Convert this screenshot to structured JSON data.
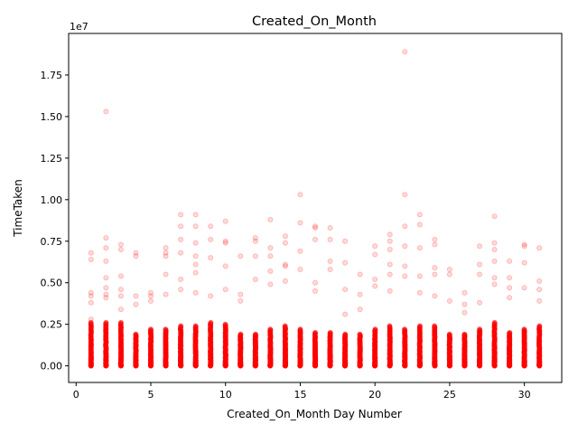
{
  "chart_data": {
    "type": "scatter",
    "title": "Created_On_Month",
    "xlabel": "Created_On_Month Day Number",
    "ylabel": "TimeTaken",
    "y_multiplier_label": "1e7",
    "xlim": [
      -0.5,
      32.5
    ],
    "ylim": [
      -1000000,
      20000000
    ],
    "x_ticks": [
      0,
      5,
      10,
      15,
      20,
      25,
      30
    ],
    "x_tick_labels": [
      "0",
      "5",
      "10",
      "15",
      "20",
      "25",
      "30"
    ],
    "y_ticks": [
      0,
      2500000,
      5000000,
      7500000,
      10000000,
      12500000,
      15000000,
      17500000
    ],
    "y_tick_labels": [
      "0.00",
      "0.25",
      "0.50",
      "0.75",
      "1.00",
      "1.25",
      "1.50",
      "1.75"
    ],
    "grid": false,
    "marker_color": "#ff0000",
    "marker_alpha": 0.15,
    "series": [
      {
        "x": [
          1,
          1,
          1,
          1,
          1,
          1,
          2,
          2,
          2,
          2,
          2,
          2,
          2,
          2,
          3,
          3,
          3,
          3,
          3,
          3,
          4,
          4,
          4,
          4,
          5,
          5,
          5,
          6,
          6,
          6,
          6,
          6,
          7,
          7,
          7,
          7,
          7,
          7,
          8,
          8,
          8,
          8,
          8,
          8,
          8,
          9,
          9,
          9,
          9,
          10,
          10,
          10,
          10,
          10,
          11,
          11,
          11,
          12,
          12,
          12,
          12,
          13,
          13,
          13,
          13,
          13,
          14,
          14,
          14,
          14,
          14,
          15,
          15,
          15,
          15,
          16,
          16,
          16,
          16,
          16,
          17,
          17,
          17,
          17,
          18,
          18,
          18,
          18,
          19,
          19,
          19,
          20,
          20,
          20,
          20,
          21,
          21,
          21,
          21,
          21,
          21,
          22,
          22,
          22,
          22,
          22,
          22,
          23,
          23,
          23,
          23,
          23,
          24,
          24,
          24,
          24,
          24,
          25,
          25,
          25,
          26,
          26,
          26,
          27,
          27,
          27,
          27,
          28,
          28,
          28,
          28,
          28,
          28,
          29,
          29,
          29,
          29,
          30,
          30,
          30,
          30,
          31,
          31,
          31,
          31
        ],
        "y": [
          6800000,
          6400000,
          4400000,
          4200000,
          3800000,
          2800000,
          15300000,
          7700000,
          7100000,
          6300000,
          5300000,
          4700000,
          4300000,
          4100000,
          7300000,
          7000000,
          5400000,
          4600000,
          4200000,
          3400000,
          6800000,
          6600000,
          4200000,
          3700000,
          4400000,
          4200000,
          3900000,
          7100000,
          6800000,
          6600000,
          5500000,
          4300000,
          9100000,
          8400000,
          7600000,
          6800000,
          5200000,
          4600000,
          9100000,
          8400000,
          7400000,
          6600000,
          6100000,
          5600000,
          4400000,
          8400000,
          7600000,
          6500000,
          4200000,
          8700000,
          7500000,
          7400000,
          6000000,
          4600000,
          6600000,
          4300000,
          3900000,
          7700000,
          7500000,
          6600000,
          5200000,
          8800000,
          7100000,
          6600000,
          5700000,
          4900000,
          7800000,
          7400000,
          6100000,
          6000000,
          5100000,
          10300000,
          8600000,
          6900000,
          5800000,
          8400000,
          8300000,
          7600000,
          5000000,
          4500000,
          8300000,
          7600000,
          6300000,
          5800000,
          7500000,
          6200000,
          4600000,
          3100000,
          5500000,
          4300000,
          3400000,
          7200000,
          6700000,
          5200000,
          4800000,
          7900000,
          7500000,
          7000000,
          6100000,
          5500000,
          4500000,
          18900000,
          10300000,
          8400000,
          7200000,
          6000000,
          5400000,
          9100000,
          8500000,
          7100000,
          5400000,
          4400000,
          7600000,
          7300000,
          5900000,
          5500000,
          4200000,
          5800000,
          5500000,
          3900000,
          4400000,
          3700000,
          3200000,
          7200000,
          6100000,
          5500000,
          3800000,
          9000000,
          7400000,
          7000000,
          6300000,
          5300000,
          4900000,
          6300000,
          5300000,
          4700000,
          4100000,
          7300000,
          7200000,
          6200000,
          4700000,
          7100000,
          5100000,
          4600000,
          3900000
        ]
      }
    ],
    "dense_band": {
      "x_days": [
        1,
        2,
        3,
        4,
        5,
        6,
        7,
        8,
        9,
        10,
        11,
        12,
        13,
        14,
        15,
        16,
        17,
        18,
        19,
        20,
        21,
        22,
        23,
        24,
        25,
        26,
        27,
        28,
        29,
        30,
        31
      ],
      "y_max": [
        2600000,
        2600000,
        2600000,
        1900000,
        2200000,
        2200000,
        2400000,
        2400000,
        2600000,
        2500000,
        1900000,
        1900000,
        2200000,
        2400000,
        2200000,
        2000000,
        2000000,
        1900000,
        1900000,
        2200000,
        2400000,
        2200000,
        2400000,
        2400000,
        1900000,
        1900000,
        2200000,
        2600000,
        2000000,
        2200000,
        2400000
      ]
    }
  }
}
